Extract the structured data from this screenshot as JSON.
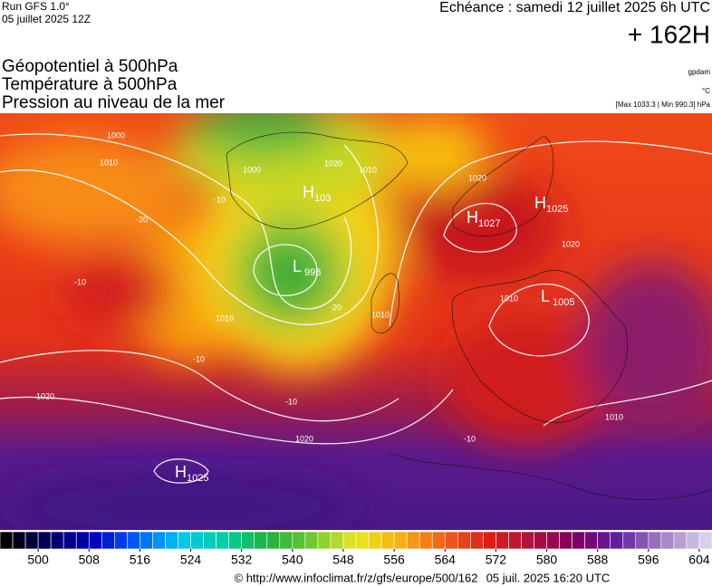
{
  "header": {
    "run": "Run GFS 1.0°",
    "date": "05 juillet 2025 12Z",
    "valid": "Echéance : samedi 12 juillet 2025 6h UTC",
    "lead": "+ 162H"
  },
  "titles": [
    "Géopotentiel à 500hPa",
    "Température à 500hPa",
    "Pression au niveau de la mer"
  ],
  "units": [
    "gpdam",
    "°C",
    "[Max 1033.3 | Min 990.3] hPa"
  ],
  "centers": [
    {
      "symbol": "H",
      "value": 103
    },
    {
      "symbol": "L",
      "value": 998
    },
    {
      "symbol": "H",
      "value": 1027
    },
    {
      "symbol": "H",
      "value": 1025
    },
    {
      "symbol": "L",
      "value": 1005
    },
    {
      "symbol": "H",
      "value": 1025
    }
  ],
  "contour_labels": [
    "1000",
    "1010",
    "1000",
    "1020",
    "1010",
    "-10",
    "-20",
    "1020",
    "1020",
    "1010",
    "-10",
    "1010",
    "-20",
    "1010",
    "-10",
    "1020",
    "-10",
    "1020",
    "-10",
    "1010"
  ],
  "colorbar": {
    "range": [
      494,
      606
    ],
    "ticks": [
      500,
      508,
      516,
      524,
      532,
      540,
      548,
      556,
      564,
      572,
      580,
      588,
      596,
      604
    ]
  },
  "footer": {
    "url": "© http://www.infoclimat.fr/z/gfs/europe/500/162",
    "stamp": "05 juil. 2025 16:20 UTC"
  }
}
